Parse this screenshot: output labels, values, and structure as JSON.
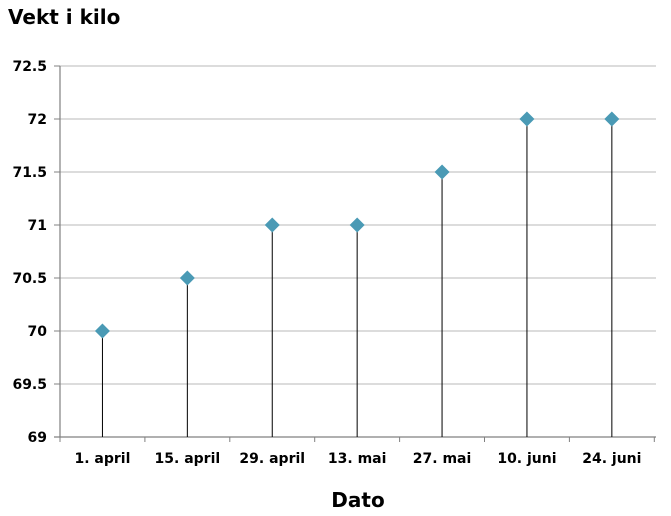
{
  "chart_data": {
    "type": "scatter",
    "ylabel": "Vekt i kilo",
    "xlabel": "Dato",
    "categories": [
      "1. april",
      "15. april",
      "29. april",
      "13. mai",
      "27. mai",
      "10. juni",
      "24. juni"
    ],
    "values": [
      70,
      70.5,
      71,
      71,
      71.5,
      72,
      72
    ],
    "ylim": [
      69,
      72.5
    ],
    "yticks": [
      "69",
      "69.5",
      "70",
      "70.5",
      "71",
      "71.5",
      "72",
      "72.5"
    ],
    "grid": true,
    "legend": "none",
    "marker": "diamond",
    "drop_lines": true,
    "colors": {
      "marker": "#4a9ab5",
      "grid": "#c8c8c8",
      "axis": "#808080",
      "drop_line": "#000000"
    }
  }
}
